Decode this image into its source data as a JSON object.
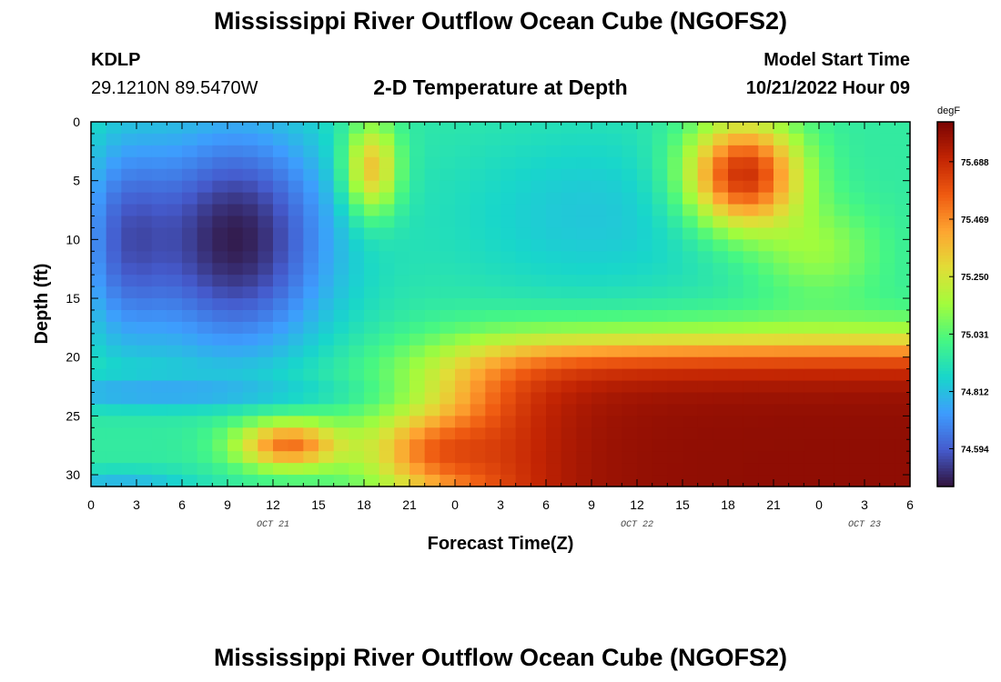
{
  "header": {
    "title": "Mississippi River Outflow Ocean Cube (NGOFS2)",
    "title_bottom": "Mississippi River Outflow Ocean Cube (NGOFS2)",
    "station_id": "KDLP",
    "station_coords": "29.1210N  89.5470W",
    "plot_title": "2-D Temperature at Depth",
    "model_start_label": "Model Start Time",
    "model_start_time": "10/21/2022 Hour 09"
  },
  "chart_data": {
    "type": "heatmap",
    "title": "2-D Temperature at Depth",
    "xlabel": "Forecast Time(Z)",
    "ylabel": "Depth (ft)",
    "x_range_hours": [
      0,
      54
    ],
    "y_range_ft": [
      0,
      31
    ],
    "y_inverted": true,
    "x_ticks": [
      "0",
      "3",
      "6",
      "9",
      "12",
      "15",
      "18",
      "21",
      "0",
      "3",
      "6",
      "9",
      "12",
      "15",
      "18",
      "21",
      "0",
      "3",
      "6"
    ],
    "x_tick_hours": [
      0,
      3,
      6,
      9,
      12,
      15,
      18,
      21,
      24,
      27,
      30,
      33,
      36,
      39,
      42,
      45,
      48,
      51,
      54
    ],
    "date_labels": [
      {
        "text": "OCT 21",
        "hour": 12
      },
      {
        "text": "OCT 22",
        "hour": 36
      },
      {
        "text": "OCT 23",
        "hour": 51
      }
    ],
    "y_ticks": [
      "0",
      "5",
      "10",
      "15",
      "20",
      "25",
      "30"
    ],
    "y_tick_values": [
      0,
      5,
      10,
      15,
      20,
      25,
      30
    ],
    "colorbar": {
      "unit": "degF",
      "min": 74.45,
      "max": 75.84,
      "ticks": [
        "75.688",
        "75.469",
        "75.250",
        "75.031",
        "74.812",
        "74.594"
      ],
      "tick_values": [
        75.688,
        75.469,
        75.25,
        75.031,
        74.812,
        74.594
      ]
    },
    "grid_resolution": {
      "time_step_hours": 1,
      "depth_step_ft": 1
    },
    "temperature_features": [
      {
        "region": "cold surface core",
        "hour_center": 10,
        "depth_center_ft": 10,
        "value": 74.48
      },
      {
        "region": "warm surface pocket",
        "hour_center": 18.5,
        "depth_center_ft": 4,
        "value": 75.45
      },
      {
        "region": "mid-layer",
        "hour_center": 33,
        "depth_center_ft": 8,
        "value": 74.8
      },
      {
        "region": "warm surface core",
        "hour_center": 43,
        "depth_center_ft": 4,
        "value": 75.7
      },
      {
        "region": "warm bottom layer",
        "hour_center": 40,
        "depth_center_ft": 28,
        "value": 75.8
      },
      {
        "region": "warm bottom pocket",
        "hour_center": 13,
        "depth_center_ft": 27.5,
        "value": 75.5
      },
      {
        "region": "cool bottom edge",
        "hour_center": 2,
        "depth_center_ft": 30.5,
        "value": 74.9
      }
    ]
  }
}
